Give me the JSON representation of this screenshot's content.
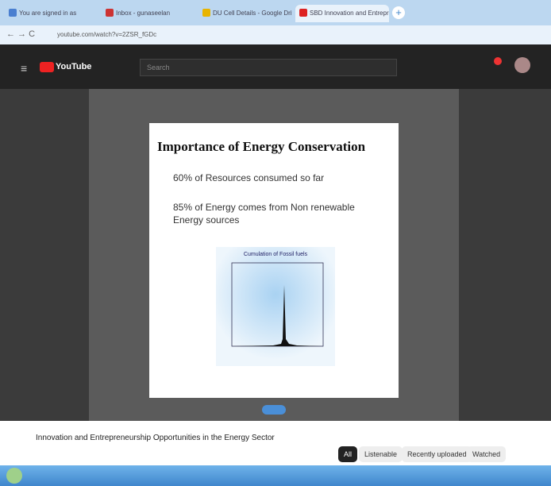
{
  "browser": {
    "tabs": [
      "You are signed in as",
      "Inbox - gunaseelan",
      "DU Cell Details - Google Drive",
      "SBD Innovation and Entrepren"
    ],
    "url": "youtube.com/watch?v=2ZSR_fGDc"
  },
  "youtube": {
    "logo": "YouTube",
    "search_placeholder": "Search"
  },
  "slide": {
    "title": "Importance of Energy Conservation",
    "bullets": [
      "60% of Resources consumed so far",
      "85% of Energy comes from Non renewable Energy sources"
    ],
    "figure_title": "Cumulation of Fossil fuels"
  },
  "video": {
    "title": "Innovation and Entrepreneurship Opportunities in the Energy Sector"
  },
  "chips": [
    "All",
    "Listenable",
    "Recently uploaded",
    "Watched"
  ]
}
